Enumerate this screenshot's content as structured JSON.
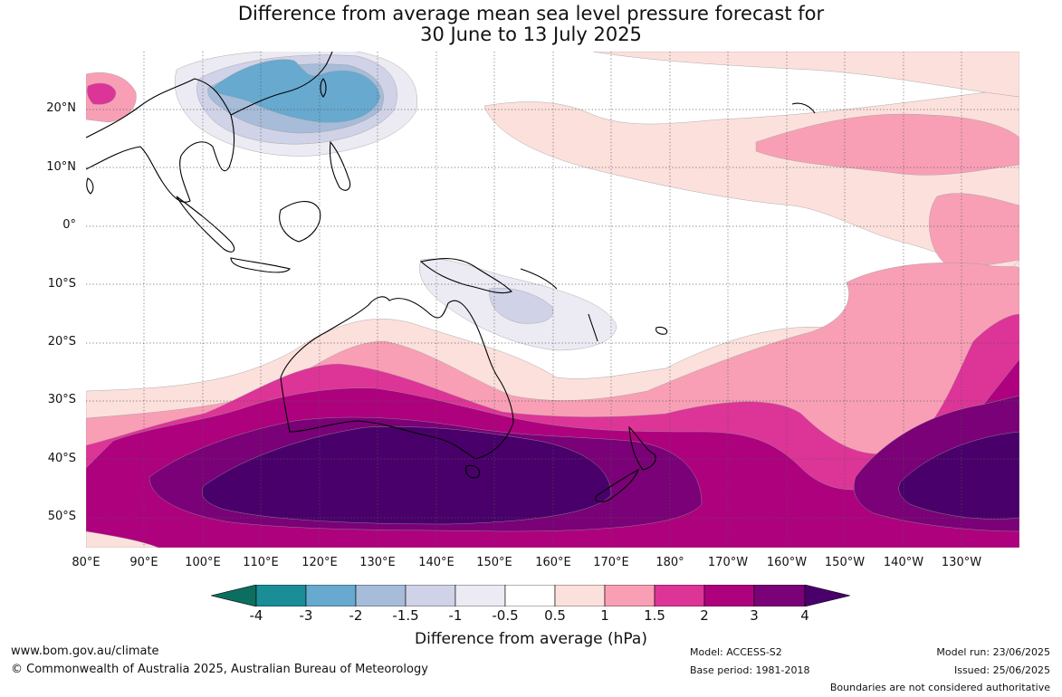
{
  "title": {
    "line1": "Difference from average mean sea level pressure forecast for",
    "line2": "30 June to 13 July 2025"
  },
  "map": {
    "lat_labels": [
      "20°N",
      "10°N",
      "0°",
      "10°S",
      "20°S",
      "30°S",
      "40°S",
      "50°S"
    ],
    "lon_labels": [
      "80°E",
      "90°E",
      "100°E",
      "110°E",
      "120°E",
      "130°E",
      "140°E",
      "150°E",
      "160°E",
      "170°E",
      "180°",
      "170°W",
      "160°W",
      "150°W",
      "140°W",
      "130°W"
    ]
  },
  "colorbar": {
    "ticks": [
      "-4",
      "-3",
      "-2",
      "-1.5",
      "-1",
      "-0.5",
      "0.5",
      "1",
      "1.5",
      "2",
      "3",
      "4"
    ],
    "colors": [
      "#0c6e5f",
      "#1b8d97",
      "#67a9cf",
      "#a6bcd9",
      "#d0d2e7",
      "#ecebf3",
      "#ffffff",
      "#fce0dc",
      "#f89fb6",
      "#dd3497",
      "#ae017e",
      "#7a0177",
      "#49006a"
    ],
    "label": "Difference from average (hPa)"
  },
  "footer": {
    "website": "www.bom.gov.au/climate",
    "copyright": "© Commonwealth of Australia 2025, Australian Bureau of Meteorology",
    "model": "Model: ACCESS-S2",
    "base_period": "Base period: 1981-2018",
    "model_run": "Model run: 23/06/2025",
    "issued": "Issued: 25/06/2025",
    "disclaimer": "Boundaries are not considered authoritative"
  }
}
